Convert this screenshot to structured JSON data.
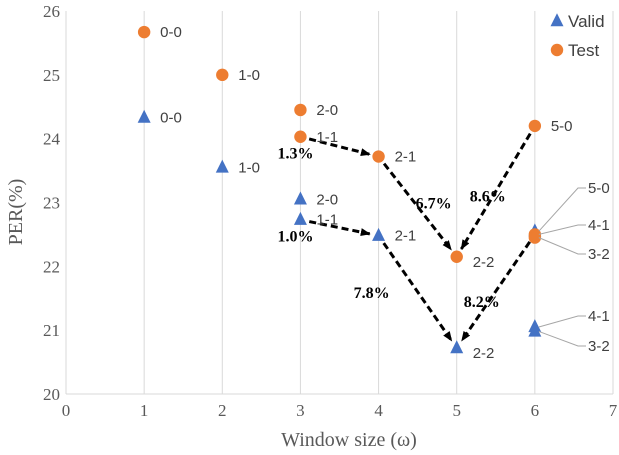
{
  "chart_data": {
    "type": "scatter",
    "xlabel": "Window size (ω)",
    "ylabel": "PER(%)",
    "xlim": [
      0,
      7
    ],
    "ylim": [
      20,
      26
    ],
    "x_ticks": [
      0,
      1,
      2,
      3,
      4,
      5,
      6,
      7
    ],
    "y_ticks": [
      20,
      21,
      22,
      23,
      24,
      25,
      26
    ],
    "grid": "vertical",
    "legend_position": "top-right",
    "series": [
      {
        "name": "Valid",
        "marker": "triangle",
        "color": "#4472C4",
        "points": [
          {
            "x": 1,
            "y": 24.33,
            "label": "0-0"
          },
          {
            "x": 2,
            "y": 23.55,
            "label": "1-0"
          },
          {
            "x": 3,
            "y": 23.05,
            "label": "2-0"
          },
          {
            "x": 3,
            "y": 22.73,
            "label": "1-1"
          },
          {
            "x": 4,
            "y": 22.48,
            "label": "2-1"
          },
          {
            "x": 5,
            "y": 20.72,
            "label": "2-2"
          },
          {
            "x": 6,
            "y": 22.55,
            "label": "5-0"
          },
          {
            "x": 6,
            "y": 21.05,
            "label": "4-1"
          },
          {
            "x": 6,
            "y": 20.98,
            "label": "3-2"
          }
        ]
      },
      {
        "name": "Test",
        "marker": "circle",
        "color": "#ED7D31",
        "points": [
          {
            "x": 1,
            "y": 25.67,
            "label": "0-0"
          },
          {
            "x": 2,
            "y": 25.0,
            "label": "1-0"
          },
          {
            "x": 3,
            "y": 24.45,
            "label": "2-0"
          },
          {
            "x": 3,
            "y": 24.03,
            "label": "1-1"
          },
          {
            "x": 4,
            "y": 23.72,
            "label": "2-1"
          },
          {
            "x": 5,
            "y": 22.15,
            "label": "2-2"
          },
          {
            "x": 6,
            "y": 24.2,
            "label": "5-0"
          },
          {
            "x": 6,
            "y": 22.5,
            "label": "4-1"
          },
          {
            "x": 6,
            "y": 22.45,
            "label": "3-2"
          }
        ]
      }
    ],
    "annotations": [
      {
        "text": "1.3%",
        "from": {
          "x": 3,
          "y": 24.03
        },
        "to": {
          "x": 4,
          "y": 23.72
        }
      },
      {
        "text": "6.7%",
        "from": {
          "x": 4,
          "y": 23.72
        },
        "to": {
          "x": 5,
          "y": 22.15
        }
      },
      {
        "text": "8.6%",
        "from": {
          "x": 6,
          "y": 24.2
        },
        "to": {
          "x": 5,
          "y": 22.15
        }
      },
      {
        "text": "1.0%",
        "from": {
          "x": 3,
          "y": 22.73
        },
        "to": {
          "x": 4,
          "y": 22.48
        }
      },
      {
        "text": "7.8%",
        "from": {
          "x": 4,
          "y": 22.48
        },
        "to": {
          "x": 5,
          "y": 20.72
        }
      },
      {
        "text": "8.2%",
        "from": {
          "x": 6,
          "y": 22.5
        },
        "to": {
          "x": 5,
          "y": 20.72
        }
      }
    ]
  }
}
